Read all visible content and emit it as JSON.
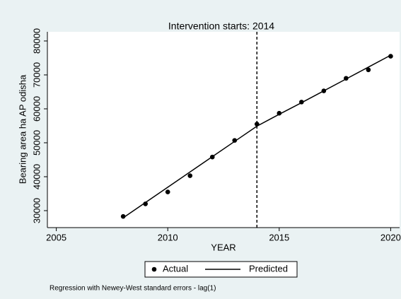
{
  "chart_data": {
    "type": "scatter-line",
    "title": "Intervention starts: 2014",
    "x_label": "YEAR",
    "y_label": "Bearing area ha AP odisha",
    "note": "Regression with Newey-West standard errors - lag(1)",
    "x": [
      2008,
      2009,
      2010,
      2011,
      2012,
      2013,
      2014,
      2015,
      2016,
      2017,
      2018,
      2019,
      2020
    ],
    "series": [
      {
        "name": "Actual",
        "kind": "scatter",
        "color": "#000000",
        "values": [
          28300,
          32000,
          35500,
          40300,
          45800,
          50700,
          55500,
          58700,
          62000,
          65300,
          69000,
          71500,
          75500
        ]
      },
      {
        "name": "Predicted",
        "kind": "line",
        "color": "#000000",
        "values": [
          27900,
          32400,
          36900,
          41400,
          45900,
          50400,
          54900,
          58400,
          61800,
          65300,
          68800,
          72300,
          75800
        ]
      }
    ],
    "xline": 2014,
    "xlim": [
      2004.6,
      2020.4
    ],
    "xticks": [
      2005,
      2010,
      2015,
      2020
    ],
    "ylim": [
      25000,
      82700
    ],
    "yticks": [
      30000,
      40000,
      50000,
      60000,
      70000,
      80000
    ],
    "grid": false
  }
}
